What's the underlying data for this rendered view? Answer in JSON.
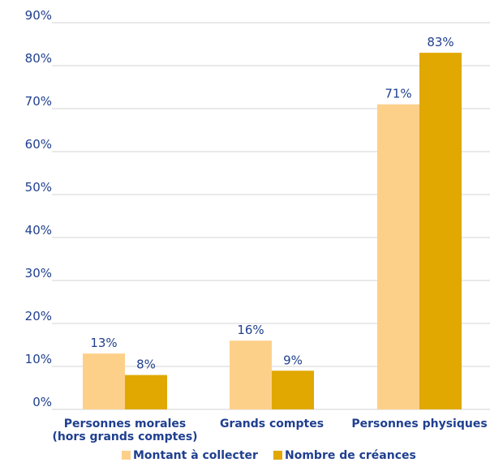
{
  "chart_data": {
    "type": "bar",
    "categories": [
      [
        "Personnes morales",
        "(hors grands comptes)"
      ],
      [
        "Grands comptes"
      ],
      [
        "Personnes physiques"
      ]
    ],
    "series": [
      {
        "name": "Montant à collecter",
        "values": [
          13,
          16,
          71
        ],
        "labels": [
          "13%",
          "16%",
          "71%"
        ],
        "color": "#fdd08a"
      },
      {
        "name": "Nombre de créances",
        "values": [
          8,
          9,
          83
        ],
        "labels": [
          "8%",
          "9%",
          "83%"
        ],
        "color": "#e0a800"
      }
    ],
    "yticks": [
      "0%",
      "10%",
      "20%",
      "30%",
      "40%",
      "50%",
      "60%",
      "70%",
      "80%",
      "90%"
    ],
    "ylim": [
      0,
      90
    ],
    "grid": true,
    "legend_position": "bottom",
    "label_color": "#1f3f8f",
    "grid_color": "#d3d3d3"
  }
}
